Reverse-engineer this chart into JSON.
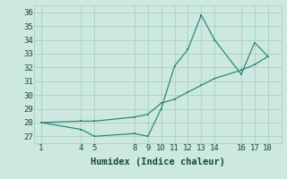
{
  "xlabel": "Humidex (Indice chaleur)",
  "line1_x": [
    1,
    4,
    5,
    8,
    9,
    10,
    11,
    12,
    13,
    14,
    16,
    17,
    18
  ],
  "line1_y": [
    28.0,
    27.5,
    27.0,
    27.2,
    27.0,
    29.0,
    32.1,
    33.3,
    35.8,
    34.0,
    31.5,
    33.8,
    32.8
  ],
  "line2_x": [
    1,
    4,
    5,
    8,
    9,
    10,
    11,
    12,
    13,
    14,
    16,
    17,
    18
  ],
  "line2_y": [
    28.0,
    28.1,
    28.1,
    28.4,
    28.6,
    29.4,
    29.7,
    30.2,
    30.7,
    31.2,
    31.8,
    32.2,
    32.8
  ],
  "line_color": "#2e8b72",
  "bg_color": "#cce8e0",
  "grid_color": "#aacfc5",
  "xlim": [
    0.5,
    19.0
  ],
  "ylim": [
    26.5,
    36.5
  ],
  "xticks": [
    1,
    4,
    5,
    8,
    9,
    10,
    11,
    12,
    13,
    14,
    16,
    17,
    18
  ],
  "yticks": [
    27,
    28,
    29,
    30,
    31,
    32,
    33,
    34,
    35,
    36
  ],
  "tick_fontsize": 6.5,
  "xlabel_fontsize": 7.5
}
